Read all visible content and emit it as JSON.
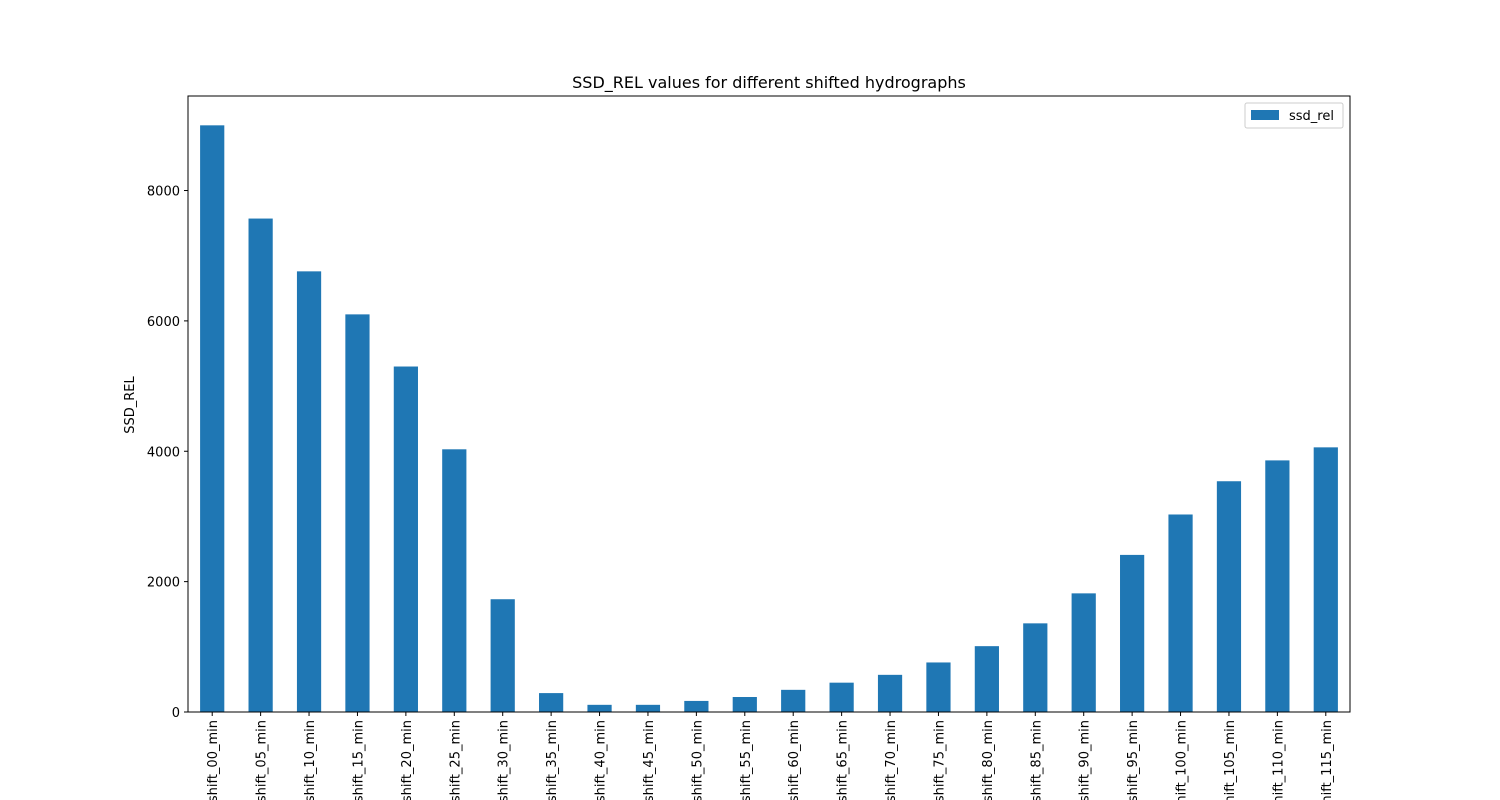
{
  "chart_data": {
    "type": "bar",
    "title": "SSD_REL values for different shifted hydrographs",
    "xlabel": "",
    "ylabel": "SSD_REL",
    "categories": [
      "shift_00_min",
      "shift_05_min",
      "shift_10_min",
      "shift_15_min",
      "shift_20_min",
      "shift_25_min",
      "shift_30_min",
      "shift_35_min",
      "shift_40_min",
      "shift_45_min",
      "shift_50_min",
      "shift_55_min",
      "shift_60_min",
      "shift_65_min",
      "shift_70_min",
      "shift_75_min",
      "shift_80_min",
      "shift_85_min",
      "shift_90_min",
      "shift_95_min",
      "shift_100_min",
      "shift_105_min",
      "shift_110_min",
      "shift_115_min"
    ],
    "series": [
      {
        "name": "ssd_rel",
        "color": "#1f77b4",
        "values": [
          9000,
          7570,
          6760,
          6100,
          5300,
          4030,
          1730,
          290,
          110,
          110,
          170,
          230,
          340,
          450,
          570,
          760,
          1010,
          1360,
          1820,
          2410,
          3030,
          3540,
          3860,
          4060
        ]
      }
    ],
    "ylim": [
      0,
      9450
    ],
    "yticks": [
      0,
      2000,
      4000,
      6000,
      8000
    ],
    "grid": false,
    "legend_position": "top-right"
  }
}
